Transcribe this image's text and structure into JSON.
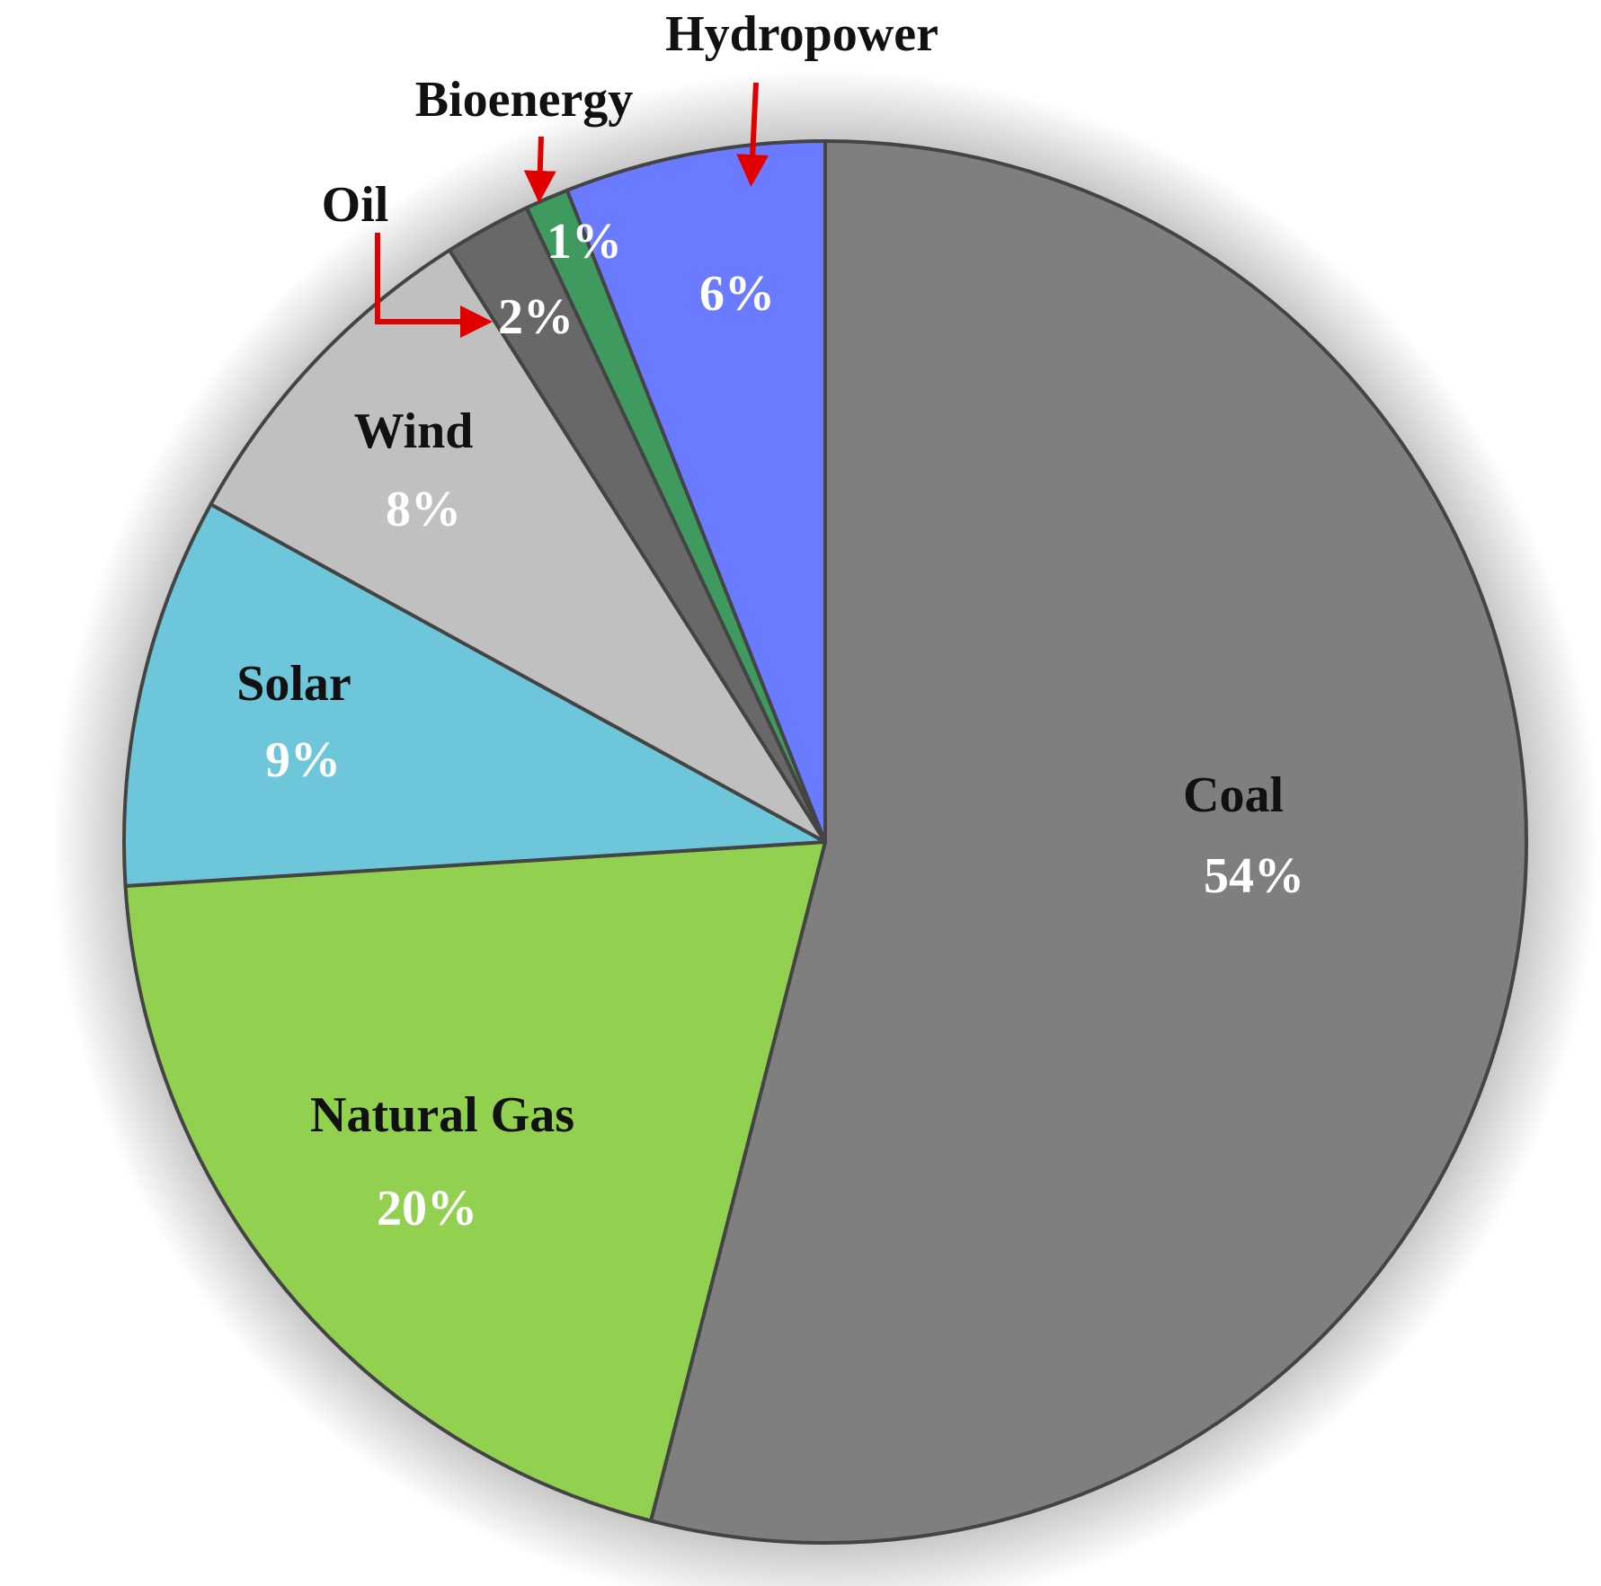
{
  "chart_data": {
    "type": "pie",
    "categories": [
      "Coal",
      "Natural Gas",
      "Solar",
      "Wind",
      "Oil",
      "Bioenergy",
      "Hydropower"
    ],
    "values": [
      54,
      20,
      9,
      8,
      2,
      1,
      6
    ],
    "value_labels": [
      "54%",
      "20%",
      "9%",
      "8%",
      "2%",
      "1%",
      "6%"
    ],
    "colors": [
      "#7f7f7f",
      "#92d050",
      "#6ec6da",
      "#c0c0c0",
      "#686868",
      "#3e9a5e",
      "#6b7bff"
    ]
  }
}
